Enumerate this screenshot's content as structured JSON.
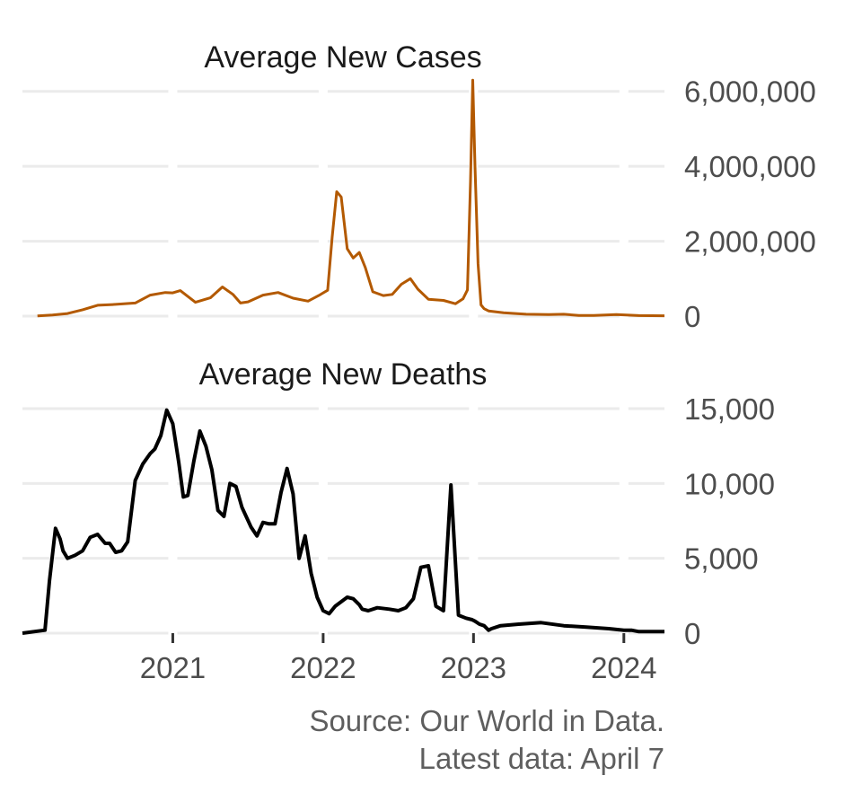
{
  "source_line1": "Source: Our World in Data.",
  "source_line2": "Latest data: April 7",
  "colors": {
    "cases": "#b35900",
    "deaths": "#000000",
    "grid": "#ebebeb",
    "axis_text": "#4d4d4d"
  },
  "chart_data": [
    {
      "type": "line",
      "title": "Average New Cases",
      "x_unit": "year",
      "ylim": [
        0,
        6400000
      ],
      "yticks": [
        0,
        2000000,
        4000000,
        6000000
      ],
      "ytick_labels": [
        "0",
        "2,000,000",
        "4,000,000",
        "6,000,000"
      ],
      "grid": true,
      "series": [
        {
          "x": [
            2020.1,
            2020.2,
            2020.3,
            2020.4,
            2020.5,
            2020.6,
            2020.75,
            2020.85,
            2020.95,
            2021.0,
            2021.05,
            2021.15,
            2021.25,
            2021.33,
            2021.4,
            2021.45,
            2021.5,
            2021.6,
            2021.7,
            2021.8,
            2021.9,
            2021.97,
            2022.0,
            2022.03,
            2022.06,
            2022.09,
            2022.12,
            2022.16,
            2022.2,
            2022.24,
            2022.28,
            2022.33,
            2022.4,
            2022.46,
            2022.52,
            2022.58,
            2022.63,
            2022.7,
            2022.8,
            2022.88,
            2022.93,
            2022.96,
            2022.98,
            2022.995,
            2023.01,
            2023.03,
            2023.05,
            2023.07,
            2023.1,
            2023.2,
            2023.35,
            2023.5,
            2023.6,
            2023.7,
            2023.8,
            2023.95,
            2024.1,
            2024.27
          ],
          "y": [
            5000,
            30000,
            70000,
            170000,
            290000,
            310000,
            350000,
            560000,
            630000,
            620000,
            680000,
            370000,
            490000,
            780000,
            580000,
            350000,
            380000,
            560000,
            630000,
            480000,
            400000,
            550000,
            620000,
            690000,
            2100000,
            3320000,
            3180000,
            1800000,
            1550000,
            1700000,
            1300000,
            650000,
            550000,
            580000,
            850000,
            1000000,
            720000,
            450000,
            420000,
            330000,
            460000,
            700000,
            3600000,
            6300000,
            4000000,
            1400000,
            300000,
            200000,
            140000,
            90000,
            50000,
            40000,
            50000,
            20000,
            20000,
            40000,
            15000,
            10000
          ]
        }
      ]
    },
    {
      "type": "line",
      "title": "Average New Deaths",
      "x_unit": "year",
      "ylim": [
        0,
        15000
      ],
      "yticks": [
        0,
        5000,
        10000,
        15000
      ],
      "ytick_labels": [
        "0",
        "5,000",
        "10,000",
        "15,000"
      ],
      "xticks": [
        2021,
        2022,
        2023,
        2024
      ],
      "xtick_labels": [
        "2021",
        "2022",
        "2023",
        "2024"
      ],
      "grid": true,
      "series": [
        {
          "x": [
            2020.0,
            2020.15,
            2020.18,
            2020.22,
            2020.25,
            2020.27,
            2020.3,
            2020.35,
            2020.4,
            2020.45,
            2020.5,
            2020.55,
            2020.58,
            2020.62,
            2020.66,
            2020.7,
            2020.75,
            2020.8,
            2020.85,
            2020.88,
            2020.92,
            2020.96,
            2021.0,
            2021.04,
            2021.07,
            2021.1,
            2021.14,
            2021.18,
            2021.22,
            2021.26,
            2021.3,
            2021.34,
            2021.38,
            2021.42,
            2021.46,
            2021.52,
            2021.56,
            2021.6,
            2021.64,
            2021.68,
            2021.72,
            2021.76,
            2021.8,
            2021.84,
            2021.88,
            2021.92,
            2021.96,
            2022.0,
            2022.04,
            2022.08,
            2022.12,
            2022.16,
            2022.2,
            2022.24,
            2022.26,
            2022.3,
            2022.36,
            2022.44,
            2022.5,
            2022.55,
            2022.6,
            2022.65,
            2022.7,
            2022.75,
            2022.8,
            2022.85,
            2022.9,
            2022.95,
            2022.99,
            2023.01,
            2023.04,
            2023.07,
            2023.09,
            2023.1,
            2023.12,
            2023.18,
            2023.3,
            2023.45,
            2023.6,
            2023.75,
            2023.9,
            2024.0,
            2024.05,
            2024.1,
            2024.2,
            2024.27
          ],
          "y": [
            0,
            200,
            3500,
            7000,
            6300,
            5500,
            5000,
            5200,
            5500,
            6400,
            6600,
            6000,
            6000,
            5400,
            5500,
            6100,
            10200,
            11300,
            12000,
            12300,
            13200,
            14900,
            14000,
            11400,
            9100,
            9200,
            11500,
            13500,
            12500,
            10900,
            8200,
            7800,
            10000,
            9800,
            8400,
            7100,
            6500,
            7400,
            7300,
            7300,
            9400,
            11000,
            9300,
            5000,
            6500,
            4000,
            2400,
            1500,
            1300,
            1800,
            2100,
            2400,
            2300,
            1900,
            1600,
            1500,
            1700,
            1600,
            1500,
            1700,
            2300,
            4400,
            4500,
            1800,
            1500,
            9900,
            1200,
            1000,
            900,
            800,
            600,
            500,
            300,
            200,
            300,
            500,
            600,
            700,
            500,
            400,
            300,
            200,
            200,
            100,
            100,
            100
          ]
        }
      ]
    }
  ]
}
